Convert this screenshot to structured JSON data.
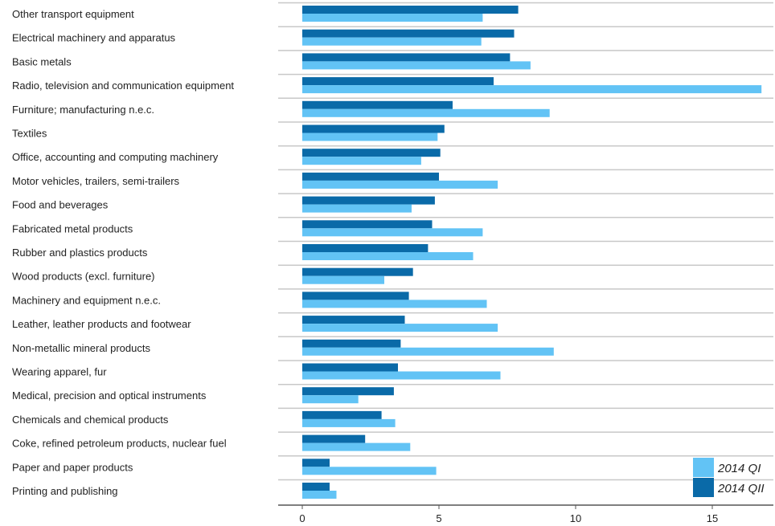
{
  "chart_data": {
    "type": "bar",
    "orientation": "horizontal",
    "categories": [
      "Other transport equipment",
      "Electrical machinery and apparatus",
      "Basic metals",
      "Radio, television and communication equipment",
      "Furniture; manufacturing n.e.c.",
      "Textiles",
      "Office, accounting and computing machinery",
      "Motor vehicles, trailers, semi-trailers",
      "Food and beverages",
      "Fabricated metal products",
      "Rubber and plastics products",
      "Wood products (excl. furniture)",
      "Machinery and equipment n.e.c.",
      "Leather, leather products and footwear",
      "Non-metallic mineral products",
      "Wearing apparel, fur",
      "Medical, precision and optical instruments",
      "Chemicals and chemical products",
      "Coke, refined petroleum products, nuclear fuel",
      "Paper and paper products",
      "Printing and publishing"
    ],
    "series": [
      {
        "name": "2014 QII",
        "color": "#0a6aa8",
        "values": [
          7.9,
          7.75,
          7.6,
          7.0,
          5.5,
          5.2,
          5.05,
          5.0,
          4.85,
          4.75,
          4.6,
          4.05,
          3.9,
          3.75,
          3.6,
          3.5,
          3.35,
          2.9,
          2.3,
          1.0,
          1.0
        ]
      },
      {
        "name": "2014 QI",
        "color": "#62c3f5",
        "values": [
          6.6,
          6.55,
          8.35,
          16.8,
          9.05,
          4.95,
          4.35,
          7.15,
          4.0,
          6.6,
          6.25,
          3.0,
          6.75,
          7.15,
          9.2,
          7.25,
          2.05,
          3.4,
          3.95,
          4.9,
          1.25
        ]
      }
    ],
    "legend": {
      "position": "bottom-right",
      "entries": [
        "2014 QI",
        "2014 QII"
      ]
    },
    "xlim": [
      0,
      17
    ],
    "xticks": [
      0,
      5,
      10,
      15
    ],
    "grid": "horizontal",
    "title": "",
    "xlabel": "",
    "ylabel": ""
  }
}
